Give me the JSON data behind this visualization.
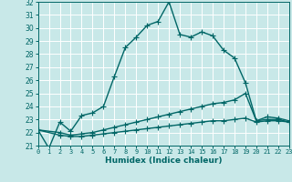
{
  "title": "",
  "xlabel": "Humidex (Indice chaleur)",
  "bg_color": "#c8e8e8",
  "grid_color": "#ffffff",
  "line_color": "#006666",
  "xlim": [
    0,
    23
  ],
  "ylim": [
    21,
    32
  ],
  "xticks": [
    0,
    1,
    2,
    3,
    4,
    5,
    6,
    7,
    8,
    9,
    10,
    11,
    12,
    13,
    14,
    15,
    16,
    17,
    18,
    19,
    20,
    21,
    22,
    23
  ],
  "yticks": [
    21,
    22,
    23,
    24,
    25,
    26,
    27,
    28,
    29,
    30,
    31,
    32
  ],
  "series1_x": [
    0,
    1,
    2,
    3,
    4,
    5,
    6,
    7,
    8,
    9,
    10,
    11,
    12,
    13,
    14,
    15,
    16,
    17,
    18,
    19,
    20,
    21,
    22,
    23
  ],
  "series1_y": [
    22.2,
    20.8,
    22.8,
    22.1,
    23.3,
    23.5,
    24.0,
    26.3,
    28.5,
    29.3,
    30.2,
    30.5,
    32.0,
    29.5,
    29.3,
    29.7,
    29.4,
    28.3,
    27.7,
    25.8,
    22.9,
    23.2,
    23.1,
    22.9
  ],
  "series2_x": [
    0,
    2,
    3,
    4,
    5,
    6,
    7,
    8,
    9,
    10,
    11,
    12,
    13,
    14,
    15,
    16,
    17,
    18,
    19,
    20,
    21,
    22,
    23
  ],
  "series2_y": [
    22.2,
    22.0,
    21.8,
    21.9,
    22.0,
    22.2,
    22.4,
    22.6,
    22.8,
    23.0,
    23.2,
    23.4,
    23.6,
    23.8,
    24.0,
    24.2,
    24.3,
    24.5,
    25.0,
    22.9,
    23.0,
    23.0,
    22.8
  ],
  "series3_x": [
    0,
    2,
    3,
    4,
    5,
    6,
    7,
    8,
    9,
    10,
    11,
    12,
    13,
    14,
    15,
    16,
    17,
    18,
    19,
    20,
    21,
    22,
    23
  ],
  "series3_y": [
    22.2,
    21.8,
    21.7,
    21.7,
    21.8,
    21.9,
    22.0,
    22.1,
    22.2,
    22.3,
    22.4,
    22.5,
    22.6,
    22.7,
    22.8,
    22.9,
    22.9,
    23.0,
    23.1,
    22.8,
    22.9,
    22.9,
    22.8
  ],
  "marker": "+",
  "markersize": 4,
  "linewidth": 1.0
}
